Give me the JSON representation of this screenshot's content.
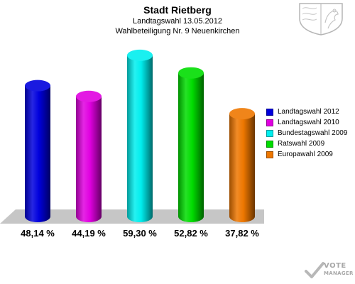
{
  "chart_data": {
    "type": "bar",
    "title": "Stadt Rietberg",
    "subtitle_1": "Landtagswahl 13.05.2012",
    "subtitle_2": "Wahlbeteiligung Nr. 9 Neuenkirchen",
    "categories": [
      "Landtagswahl 2012",
      "Landtagswahl 2010",
      "Bundestagswahl 2009",
      "Ratswahl 2009",
      "Europawahl 2009"
    ],
    "values": [
      48.14,
      44.19,
      59.3,
      52.82,
      37.82
    ],
    "value_labels": [
      "48,14 %",
      "44,19 %",
      "59,30 %",
      "52,82 %",
      "37,82 %"
    ],
    "colors": [
      "#0000dd",
      "#e000e0",
      "#00eeee",
      "#00dd00",
      "#ee7700"
    ],
    "legend": {
      "position": "right",
      "entries": [
        "Landtagswahl 2012",
        "Landtagswahl 2010",
        "Bundestagswahl 2009",
        "Ratswahl 2009",
        "Europawahl 2009"
      ]
    },
    "ylim": [
      0,
      65
    ],
    "grid": false
  },
  "watermark": {
    "line1": "VOTE",
    "line2": "MANAGER"
  },
  "crest_icon": "coat-of-arms-icon"
}
